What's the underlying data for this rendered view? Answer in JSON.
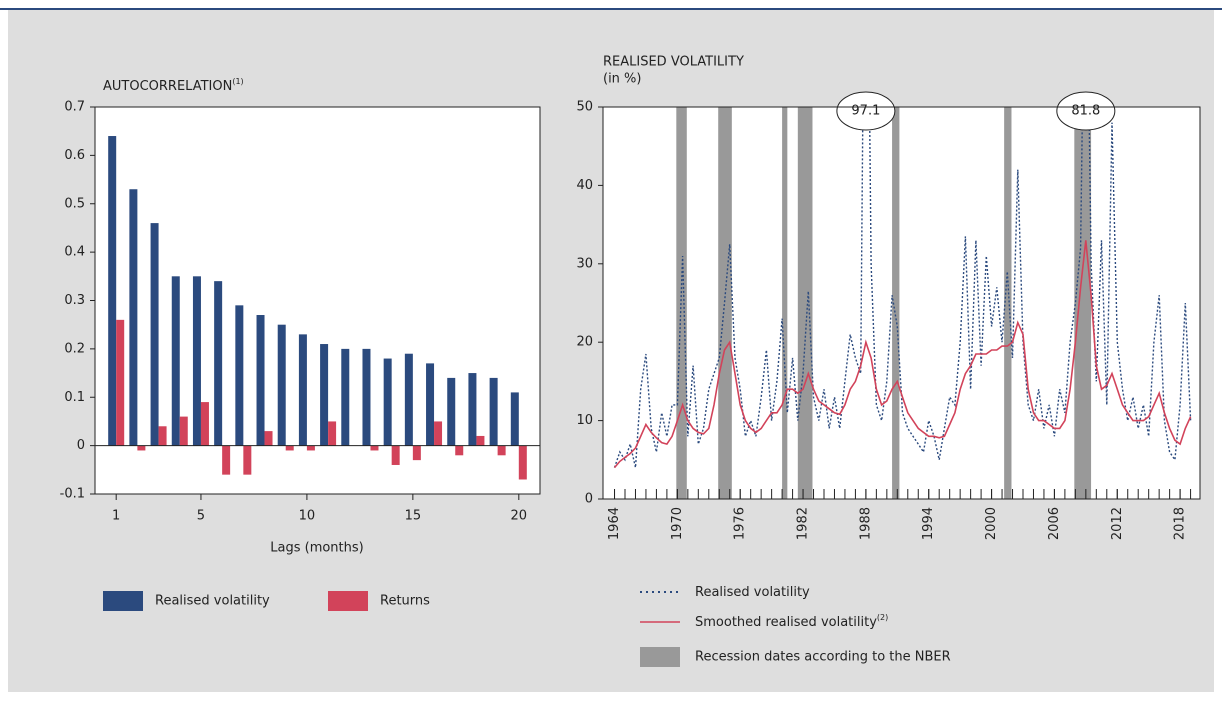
{
  "chart_data": [
    {
      "type": "bar",
      "title": "AUTOCORRELATION",
      "title_note": "(1)",
      "xlabel": "Lags (months)",
      "x": [
        1,
        2,
        3,
        4,
        5,
        6,
        7,
        8,
        9,
        10,
        11,
        12,
        13,
        14,
        15,
        16,
        17,
        18,
        19,
        20
      ],
      "xlim": [
        0,
        21
      ],
      "xticks": [
        1,
        5,
        10,
        15,
        20
      ],
      "ylim": [
        -0.1,
        0.7
      ],
      "yticks": [
        -0.1,
        0,
        0.1,
        0.2,
        0.3,
        0.4,
        0.5,
        0.6,
        0.7
      ],
      "series": [
        {
          "name": "Realised volatility",
          "color": "#2b4a7e",
          "values": [
            0.64,
            0.53,
            0.46,
            0.35,
            0.35,
            0.34,
            0.29,
            0.27,
            0.25,
            0.23,
            0.21,
            0.2,
            0.2,
            0.18,
            0.19,
            0.17,
            0.14,
            0.15,
            0.14,
            0.11
          ]
        },
        {
          "name": "Returns",
          "color": "#d2435a",
          "values": [
            0.26,
            -0.01,
            0.04,
            0.06,
            0.09,
            -0.06,
            -0.06,
            0.03,
            -0.01,
            -0.01,
            0.05,
            0,
            -0.01,
            -0.04,
            -0.03,
            0.05,
            -0.02,
            0.02,
            -0.02,
            -0.07
          ]
        }
      ]
    },
    {
      "type": "line",
      "title": "REALISED VOLATILITY",
      "subtitle": "(in %)",
      "x": [
        1964,
        1964.5,
        1965,
        1965.5,
        1966,
        1966.5,
        1967,
        1967.5,
        1968,
        1968.5,
        1969,
        1969.5,
        1970,
        1970.5,
        1971,
        1971.5,
        1972,
        1972.5,
        1973,
        1973.5,
        1974,
        1974.5,
        1975,
        1975.5,
        1976,
        1976.5,
        1977,
        1977.5,
        1978,
        1978.5,
        1979,
        1979.5,
        1980,
        1980.5,
        1981,
        1981.5,
        1982,
        1982.5,
        1983,
        1983.5,
        1984,
        1984.5,
        1985,
        1985.5,
        1986,
        1986.5,
        1987,
        1987.5,
        1988,
        1988.5,
        1989,
        1989.5,
        1990,
        1990.5,
        1991,
        1991.5,
        1992,
        1992.5,
        1993,
        1993.5,
        1994,
        1994.5,
        1995,
        1995.5,
        1996,
        1996.5,
        1997,
        1997.5,
        1998,
        1998.5,
        1999,
        1999.5,
        2000,
        2000.5,
        2001,
        2001.5,
        2002,
        2002.5,
        2003,
        2003.5,
        2004,
        2004.5,
        2005,
        2005.5,
        2006,
        2006.5,
        2007,
        2007.5,
        2008,
        2008.5,
        2009,
        2009.5,
        2010,
        2010.5,
        2011,
        2011.5,
        2012,
        2012.5,
        2013,
        2013.5,
        2014,
        2014.5,
        2015,
        2015.5,
        2016,
        2016.5,
        2017,
        2017.5,
        2018,
        2018.5,
        2019
      ],
      "xlim": [
        1962.9,
        2019.9
      ],
      "xticks": [
        1964,
        1970,
        1976,
        1982,
        1988,
        1994,
        2000,
        2006,
        2012,
        2018
      ],
      "xminorticks": [
        1964,
        1965,
        1966,
        1967,
        1968,
        1969,
        1970,
        1971,
        1972,
        1973,
        1974,
        1975,
        1976,
        1977,
        1978,
        1979,
        1980,
        1981,
        1982,
        1983,
        1984,
        1985,
        1986,
        1987,
        1988,
        1989,
        1990,
        1991,
        1992,
        1993,
        1994,
        1995,
        1996,
        1997,
        1998,
        1999,
        2000,
        2001,
        2002,
        2003,
        2004,
        2005,
        2006,
        2007,
        2008,
        2009,
        2010,
        2011,
        2012,
        2013,
        2014,
        2015,
        2016,
        2017,
        2018,
        2019
      ],
      "ylim": [
        0,
        50
      ],
      "yticks": [
        0,
        10,
        20,
        30,
        40,
        50
      ],
      "series": [
        {
          "name": "Realised volatility",
          "color": "#2b4a7e",
          "style": "dotted",
          "values": [
            4,
            6,
            5,
            7,
            4,
            14,
            18.5,
            9,
            6,
            11,
            8,
            12,
            12,
            31,
            8,
            17,
            7,
            9,
            14,
            16,
            18,
            25,
            32.5,
            18,
            14,
            8,
            10,
            8,
            13,
            19,
            10,
            15,
            23,
            11,
            18,
            10,
            16,
            26.5,
            13,
            10,
            14,
            9,
            13,
            9,
            15,
            21,
            18,
            16,
            97.1,
            30,
            12,
            10,
            15,
            26,
            22,
            11,
            9,
            8,
            7,
            6,
            10,
            8,
            5,
            9,
            13,
            12,
            20,
            33.5,
            14,
            33,
            17,
            31,
            22,
            27,
            20,
            29,
            18,
            42,
            20,
            12,
            10,
            14,
            9,
            12,
            8,
            14,
            11,
            20,
            25,
            32,
            81.8,
            30,
            15,
            33,
            12,
            48,
            20,
            14,
            10,
            13,
            9,
            12,
            8,
            20,
            26,
            10,
            6,
            5,
            12,
            25,
            10
          ]
        },
        {
          "name": "Smoothed realised volatility",
          "name_note": "(2)",
          "color": "#d2435a",
          "style": "solid",
          "values": [
            4,
            4.8,
            5.3,
            5.8,
            6.5,
            8,
            9.5,
            8.5,
            7.8,
            7.2,
            7,
            8,
            10,
            12,
            10,
            9,
            8.5,
            8.3,
            9,
            12,
            16,
            19,
            20,
            16,
            12,
            10,
            9,
            8.5,
            9,
            10,
            11,
            11,
            12,
            14,
            14,
            13.5,
            14,
            16,
            14,
            12.5,
            12,
            11.5,
            11,
            10.8,
            12,
            14,
            15,
            17,
            20,
            18,
            14,
            12,
            12.5,
            14,
            15,
            13,
            11,
            10,
            9,
            8.5,
            8,
            8,
            7.8,
            8,
            9.5,
            11,
            14,
            16,
            17,
            18.5,
            18.5,
            18.5,
            19,
            19,
            19.5,
            19.5,
            20,
            22.5,
            21,
            14,
            11,
            10,
            10,
            9.5,
            9,
            9,
            10,
            14,
            20,
            27,
            33,
            26,
            17,
            14,
            14.5,
            16,
            14,
            12,
            11,
            10,
            10,
            10,
            10.5,
            12,
            13.5,
            11,
            9,
            7.5,
            7,
            9,
            10.5
          ]
        }
      ],
      "recessions": [
        [
          1969.9,
          1970.9
        ],
        [
          1973.9,
          1975.2
        ],
        [
          1980.0,
          1980.5
        ],
        [
          1981.5,
          1982.9
        ],
        [
          1990.5,
          1991.2
        ],
        [
          2001.2,
          2001.9
        ],
        [
          2007.9,
          2009.5
        ]
      ],
      "recession_color": "#999999",
      "recession_label": "Recession dates according to the NBER"
    }
  ]
}
